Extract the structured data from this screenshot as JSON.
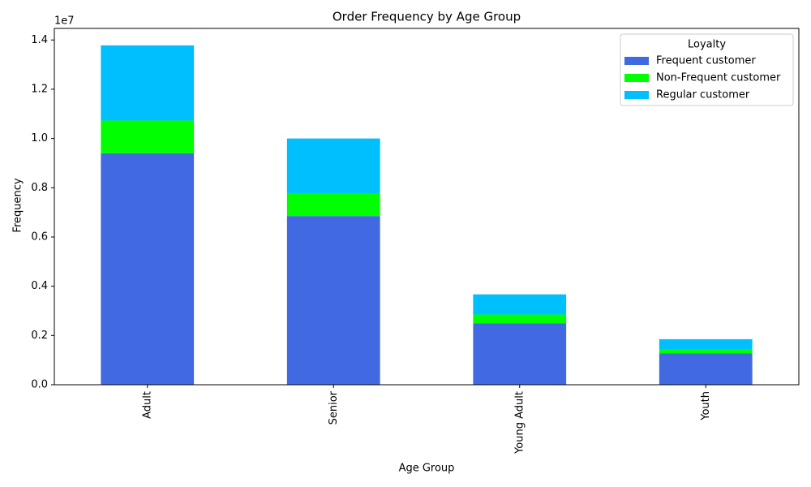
{
  "chart_data": {
    "type": "stacked_bar",
    "title": "Order Frequency by Age Group",
    "x_label": "Age Group",
    "y_label": "Frequency",
    "y_offset_label": "1e7",
    "categories": [
      "Adult",
      "Senior",
      "Young Adult",
      "Youth"
    ],
    "series": [
      {
        "name": "Frequent customer",
        "color": "#4169e1",
        "values": [
          0.94,
          0.685,
          0.25,
          0.128
        ]
      },
      {
        "name": "Non-Frequent customer",
        "color": "#00ff00",
        "values": [
          0.133,
          0.093,
          0.035,
          0.017
        ]
      },
      {
        "name": "Regular customer",
        "color": "#00bfff",
        "values": [
          0.305,
          0.222,
          0.082,
          0.04
        ]
      }
    ],
    "ylim": [
      0,
      1.447
    ],
    "yticks": [
      {
        "value": 0,
        "label": "0.0"
      },
      0.2,
      0.4,
      0.6,
      0.8,
      {
        "value": 1,
        "label": "1.0"
      },
      1.2,
      1.4
    ],
    "legend_title": "Loyalty",
    "legend_position": "upper right",
    "grid": false
  }
}
